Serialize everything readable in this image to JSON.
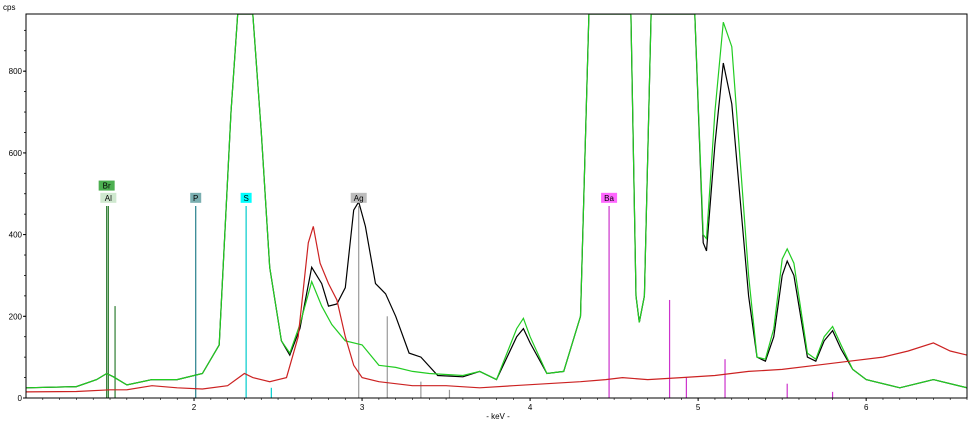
{
  "chart_data": {
    "type": "line",
    "title": "",
    "xlabel": "- keV -",
    "ylabel": "cps",
    "xlim": [
      1.0,
      6.6
    ],
    "ylim": [
      0,
      940
    ],
    "x_ticks": [
      2,
      3,
      4,
      5,
      6
    ],
    "y_ticks": [
      0,
      200,
      400,
      600,
      800
    ],
    "grid": false,
    "legend": "none",
    "series": [
      {
        "name": "",
        "color": "#000000",
        "points": [
          [
            1.0,
            25
          ],
          [
            1.3,
            28
          ],
          [
            1.42,
            45
          ],
          [
            1.48,
            60
          ],
          [
            1.52,
            52
          ],
          [
            1.6,
            32
          ],
          [
            1.75,
            45
          ],
          [
            1.9,
            45
          ],
          [
            2.05,
            60
          ],
          [
            2.15,
            130
          ],
          [
            2.22,
            700
          ],
          [
            2.26,
            940
          ],
          [
            2.35,
            940
          ],
          [
            2.4,
            650
          ],
          [
            2.45,
            320
          ],
          [
            2.52,
            140
          ],
          [
            2.57,
            105
          ],
          [
            2.63,
            170
          ],
          [
            2.7,
            320
          ],
          [
            2.76,
            280
          ],
          [
            2.8,
            225
          ],
          [
            2.85,
            230
          ],
          [
            2.9,
            270
          ],
          [
            2.95,
            460
          ],
          [
            2.98,
            480
          ],
          [
            3.02,
            420
          ],
          [
            3.08,
            280
          ],
          [
            3.14,
            255
          ],
          [
            3.2,
            200
          ],
          [
            3.28,
            110
          ],
          [
            3.35,
            100
          ],
          [
            3.45,
            55
          ],
          [
            3.6,
            52
          ],
          [
            3.7,
            65
          ],
          [
            3.8,
            45
          ],
          [
            3.92,
            150
          ],
          [
            3.96,
            170
          ],
          [
            4.0,
            135
          ],
          [
            4.1,
            60
          ],
          [
            4.2,
            65
          ],
          [
            4.3,
            200
          ],
          [
            4.35,
            940
          ],
          [
            4.6,
            940
          ],
          [
            4.63,
            250
          ],
          [
            4.65,
            185
          ],
          [
            4.68,
            250
          ],
          [
            4.72,
            940
          ],
          [
            4.98,
            940
          ],
          [
            5.03,
            380
          ],
          [
            5.05,
            360
          ],
          [
            5.1,
            620
          ],
          [
            5.15,
            820
          ],
          [
            5.2,
            720
          ],
          [
            5.3,
            250
          ],
          [
            5.35,
            100
          ],
          [
            5.4,
            90
          ],
          [
            5.45,
            150
          ],
          [
            5.5,
            300
          ],
          [
            5.53,
            335
          ],
          [
            5.57,
            300
          ],
          [
            5.65,
            100
          ],
          [
            5.7,
            90
          ],
          [
            5.75,
            140
          ],
          [
            5.8,
            165
          ],
          [
            5.85,
            120
          ],
          [
            5.92,
            70
          ],
          [
            6.0,
            45
          ],
          [
            6.2,
            25
          ],
          [
            6.4,
            45
          ],
          [
            6.6,
            25
          ]
        ]
      },
      {
        "name": "",
        "color": "#22cc22",
        "points": [
          [
            1.0,
            25
          ],
          [
            1.3,
            28
          ],
          [
            1.42,
            45
          ],
          [
            1.48,
            60
          ],
          [
            1.52,
            52
          ],
          [
            1.6,
            32
          ],
          [
            1.75,
            45
          ],
          [
            1.9,
            45
          ],
          [
            2.05,
            60
          ],
          [
            2.15,
            130
          ],
          [
            2.22,
            700
          ],
          [
            2.26,
            940
          ],
          [
            2.35,
            940
          ],
          [
            2.4,
            650
          ],
          [
            2.45,
            320
          ],
          [
            2.52,
            140
          ],
          [
            2.57,
            110
          ],
          [
            2.63,
            180
          ],
          [
            2.7,
            285
          ],
          [
            2.76,
            225
          ],
          [
            2.82,
            180
          ],
          [
            2.9,
            140
          ],
          [
            3.0,
            130
          ],
          [
            3.1,
            80
          ],
          [
            3.2,
            75
          ],
          [
            3.3,
            65
          ],
          [
            3.4,
            60
          ],
          [
            3.6,
            55
          ],
          [
            3.7,
            65
          ],
          [
            3.8,
            45
          ],
          [
            3.92,
            170
          ],
          [
            3.96,
            195
          ],
          [
            4.0,
            150
          ],
          [
            4.1,
            60
          ],
          [
            4.2,
            65
          ],
          [
            4.3,
            200
          ],
          [
            4.35,
            940
          ],
          [
            4.6,
            940
          ],
          [
            4.63,
            250
          ],
          [
            4.65,
            185
          ],
          [
            4.68,
            250
          ],
          [
            4.72,
            940
          ],
          [
            4.98,
            940
          ],
          [
            5.03,
            400
          ],
          [
            5.05,
            390
          ],
          [
            5.1,
            700
          ],
          [
            5.15,
            920
          ],
          [
            5.2,
            860
          ],
          [
            5.3,
            300
          ],
          [
            5.35,
            100
          ],
          [
            5.4,
            95
          ],
          [
            5.45,
            170
          ],
          [
            5.5,
            340
          ],
          [
            5.53,
            365
          ],
          [
            5.57,
            330
          ],
          [
            5.65,
            110
          ],
          [
            5.7,
            95
          ],
          [
            5.75,
            150
          ],
          [
            5.8,
            175
          ],
          [
            5.85,
            130
          ],
          [
            5.92,
            70
          ],
          [
            6.0,
            45
          ],
          [
            6.2,
            25
          ],
          [
            6.4,
            45
          ],
          [
            6.6,
            25
          ]
        ]
      },
      {
        "name": "",
        "color": "#cc2222",
        "points": [
          [
            1.0,
            15
          ],
          [
            1.3,
            16
          ],
          [
            1.5,
            20
          ],
          [
            1.6,
            20
          ],
          [
            1.75,
            30
          ],
          [
            1.9,
            25
          ],
          [
            2.05,
            22
          ],
          [
            2.2,
            30
          ],
          [
            2.3,
            60
          ],
          [
            2.35,
            50
          ],
          [
            2.45,
            40
          ],
          [
            2.55,
            50
          ],
          [
            2.62,
            150
          ],
          [
            2.68,
            380
          ],
          [
            2.71,
            420
          ],
          [
            2.75,
            330
          ],
          [
            2.8,
            280
          ],
          [
            2.85,
            240
          ],
          [
            2.9,
            150
          ],
          [
            2.95,
            80
          ],
          [
            3.0,
            50
          ],
          [
            3.1,
            40
          ],
          [
            3.3,
            30
          ],
          [
            3.5,
            30
          ],
          [
            3.7,
            25
          ],
          [
            3.9,
            30
          ],
          [
            4.1,
            35
          ],
          [
            4.3,
            40
          ],
          [
            4.45,
            45
          ],
          [
            4.55,
            50
          ],
          [
            4.7,
            45
          ],
          [
            4.9,
            50
          ],
          [
            5.1,
            55
          ],
          [
            5.3,
            65
          ],
          [
            5.5,
            70
          ],
          [
            5.7,
            80
          ],
          [
            5.9,
            90
          ],
          [
            6.1,
            100
          ],
          [
            6.25,
            115
          ],
          [
            6.4,
            135
          ],
          [
            6.5,
            115
          ],
          [
            6.6,
            105
          ]
        ]
      }
    ],
    "element_lines": [
      {
        "label": "Br",
        "color": "#2e7d32",
        "lines": [
          [
            1.48,
            470
          ],
          [
            1.53,
            225
          ]
        ]
      },
      {
        "label": "Al",
        "color": "#2e7d32",
        "lines": [
          [
            1.49,
            470
          ]
        ]
      },
      {
        "label": "P",
        "color": "#26808c",
        "lines": [
          [
            2.01,
            470
          ]
        ]
      },
      {
        "label": "S",
        "color": "#00cccc",
        "lines": [
          [
            2.31,
            470
          ],
          [
            2.46,
            25
          ]
        ]
      },
      {
        "label": "Ag",
        "color": "#999999",
        "lines": [
          [
            2.98,
            470
          ],
          [
            3.15,
            200
          ],
          [
            3.35,
            40
          ],
          [
            3.52,
            20
          ]
        ]
      },
      {
        "label": "Ba",
        "color": "#cc33cc",
        "lines": [
          [
            4.47,
            470
          ],
          [
            4.83,
            240
          ],
          [
            4.93,
            50
          ],
          [
            5.16,
            95
          ],
          [
            5.53,
            35
          ],
          [
            5.8,
            15
          ]
        ]
      }
    ],
    "tags": [
      {
        "text": "Br",
        "x": 1.48,
        "y": 520,
        "bg": "#4caf50",
        "fg": "#000000"
      },
      {
        "text": "Al",
        "x": 1.49,
        "y": 490,
        "bg": "#cfe8cf",
        "fg": "#000000"
      },
      {
        "text": "P",
        "x": 2.01,
        "y": 490,
        "bg": "#7aaeb0",
        "fg": "#000000"
      },
      {
        "text": "S",
        "x": 2.31,
        "y": 490,
        "bg": "#00ffff",
        "fg": "#000000"
      },
      {
        "text": "Ag",
        "x": 2.98,
        "y": 490,
        "bg": "#bdbdbd",
        "fg": "#000000"
      },
      {
        "text": "Ba",
        "x": 4.47,
        "y": 490,
        "bg": "#ff66ff",
        "fg": "#000000"
      }
    ]
  }
}
